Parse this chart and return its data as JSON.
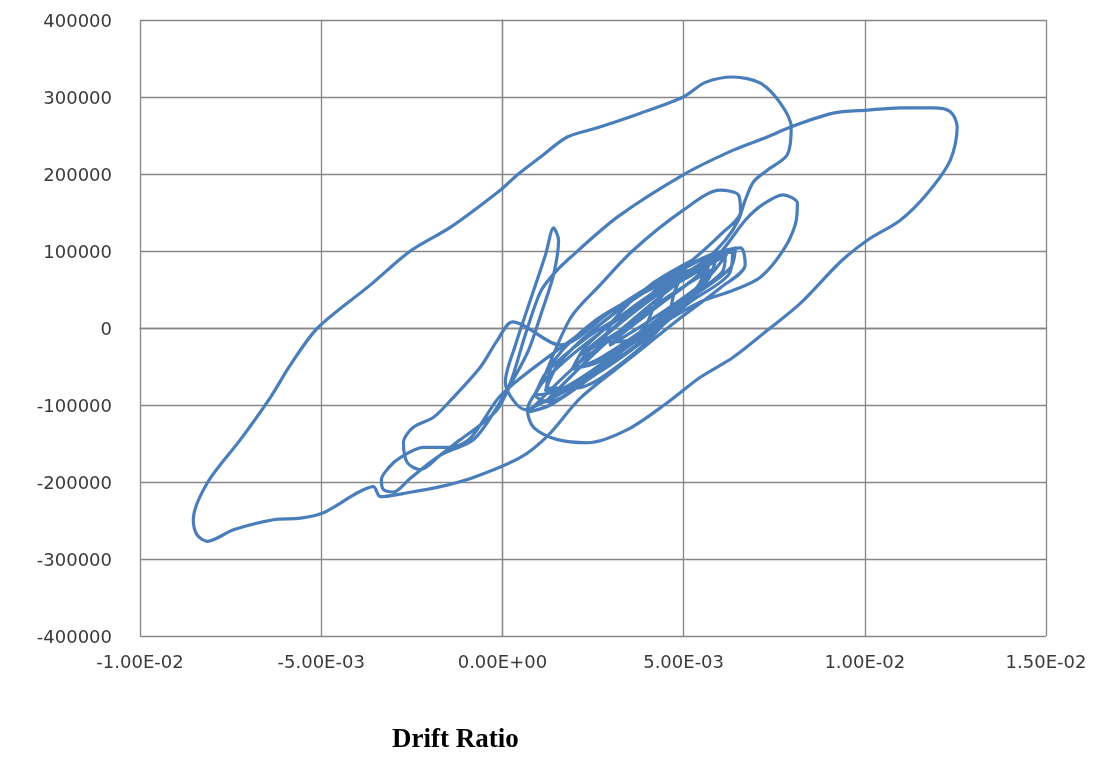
{
  "chart_data": {
    "type": "line",
    "xlabel": "Drift Ratio",
    "color": "#4a7ebb",
    "marker": "none",
    "line_style": "solid",
    "grid": true,
    "xlim": [
      -0.01,
      0.015
    ],
    "xticks": [
      {
        "value": -0.01,
        "label": "-1.00E-02"
      },
      {
        "value": -0.005,
        "label": "-5.00E-03"
      },
      {
        "value": 0,
        "label": "0.00E+00"
      },
      {
        "value": 0.005,
        "label": "5.00E-03"
      },
      {
        "value": 0.01,
        "label": "1.00E-02"
      },
      {
        "value": 0.015,
        "label": "1.50E-02"
      }
    ],
    "ylim": [
      -400000,
      400000
    ],
    "yticks": [
      -400000,
      -300000,
      -200000,
      -100000,
      0,
      100000,
      200000,
      300000,
      400000
    ],
    "x": [
      0.0027,
      0.00381,
      0.00519,
      0.00615,
      0.00607,
      0.00505,
      0.00367,
      0.00229,
      0.00127,
      0.00091,
      0.0016,
      0.00298,
      0.00436,
      0.00574,
      0.00643,
      0.00629,
      0.00519,
      0.00381,
      0.00243,
      0.00132,
      0.00063,
      8e-05,
      0.00036,
      0.00077,
      0.00119,
      0.00141,
      0.00155,
      0.00141,
      0.0011,
      0.00072,
      0.00022,
      -0.00014,
      -0.00061,
      -0.00116,
      -0.00171,
      -0.00226,
      -0.00262,
      -0.00273,
      -0.00246,
      -0.0019,
      -0.00143,
      -0.00061,
      -0.00014,
      0.00028,
      0.0016,
      0.00298,
      0.00436,
      0.0056,
      0.00635,
      0.00624,
      0.00519,
      0.00381,
      0.00243,
      0.00132,
      0.00072,
      0.00215,
      0.00381,
      0.00519,
      0.00607,
      0.0067,
      0.00717,
      0.00775,
      0.00814,
      0.00808,
      0.00775,
      0.00712,
      0.00637,
      0.00546,
      0.00436,
      0.00326,
      0.00215,
      0.00119,
      0.0027,
      0.00408,
      0.00546,
      0.00615,
      0.00651,
      0.0067,
      0.00693,
      0.00731,
      0.00786,
      0.00797,
      0.00767,
      0.00712,
      0.00637,
      0.0056,
      0.00499,
      0.00381,
      0.00262,
      0.00179,
      0.00105,
      0.00044,
      -6e-05,
      -0.00143,
      -0.00254,
      -0.00364,
      -0.0051,
      -0.00585,
      -0.0064,
      -0.00723,
      -0.00814,
      -0.00853,
      -0.00842,
      -0.00814,
      -0.00742,
      -0.00632,
      -0.00557,
      -0.00494,
      -0.004,
      -0.00356,
      -0.00337,
      -0.00262,
      -0.00171,
      -0.0008,
      0.0005,
      0.00127,
      0.00215,
      0.00353,
      0.00491,
      0.00601,
      0.0067,
      0.00657,
      0.00574,
      0.00436,
      0.00298,
      0.0016,
      0.0005,
      -0.00011,
      -0.00088,
      -0.00143,
      -0.00218,
      -0.00281,
      -0.00315,
      -0.00334,
      -0.00328,
      -0.00301,
      -0.00254,
      -0.00171,
      -0.0008,
      -0.00019,
      0.00022,
      0.00063,
      0.00105,
      0.00141,
      0.00179,
      0.00317,
      0.00499,
      0.00637,
      0.00731,
      0.00795,
      0.00913,
      0.01007,
      0.01098,
      0.01189,
      0.01236,
      0.01255,
      0.01236,
      0.01173,
      0.01098,
      0.01007,
      0.00933,
      0.00822,
      0.00731,
      0.00637,
      0.00546,
      0.00455,
      0.00345,
      0.00235,
      0.00152,
      0.00086,
      0.00069,
      0.00105,
      0.00188,
      0.0027,
      0.00361,
      0.00499,
      0.00601,
      0.00651,
      0.00657,
      0.00601,
      0.00519,
      0.00408,
      0.00298,
      0.00215,
      0.00326,
      0.00464,
      0.00574,
      0.00546,
      0.00408,
      0.00298,
      0.00326,
      0.0056,
      0.00519,
      0.00372,
      0.00207,
      0.00119,
      0.0016,
      0.00306,
      0.00472,
      0.00568,
      0.0053,
      0.00403,
      0.00265,
      0.00193,
      0.00232,
      0.00359,
      0.00497,
      0.00475,
      0.00452,
      0.00339,
      0.00201,
      0.00121,
      0.00143,
      0.00257,
      0.00395,
      0.0059,
      0.00566,
      0.00466,
      0.00348,
      0.00281,
      0.00306,
      0.00406,
      0.00524,
      0.00422,
      0.00392,
      0.00281,
      0.00157,
      0.00091,
      0.00121,
      0.00232,
      0.00356,
      0.00618,
      0.00568,
      0.00425,
      0.0027,
      0.00199,
      0.00248,
      0.00392,
      0.00546
    ],
    "values": [
      -16000,
      30000,
      73000,
      95000,
      73000,
      36000,
      -16000,
      -68000,
      -96000,
      -87000,
      -48000,
      4000,
      49000,
      91000,
      104000,
      78000,
      39000,
      -9000,
      -57000,
      -91000,
      -106000,
      -70000,
      -22000,
      36000,
      95000,
      130000,
      114000,
      69000,
      23000,
      -29000,
      -74000,
      -106000,
      -126000,
      -145000,
      -165000,
      -184000,
      -175000,
      -149000,
      -129000,
      -116000,
      -94000,
      -51000,
      -16000,
      8000,
      -22000,
      21000,
      60000,
      91000,
      99000,
      69000,
      34000,
      -18000,
      -65000,
      -100000,
      -109000,
      -44000,
      13000,
      60000,
      101000,
      140000,
      160000,
      173000,
      162000,
      134000,
      101000,
      66000,
      49000,
      34000,
      4000,
      -31000,
      -70000,
      -96000,
      -26000,
      30000,
      82000,
      114000,
      140000,
      166000,
      190000,
      205000,
      225000,
      261000,
      292000,
      318000,
      326000,
      319000,
      300000,
      279000,
      260000,
      248000,
      222000,
      200000,
      179000,
      131000,
      100000,
      56000,
      0,
      -48000,
      -90000,
      -145000,
      -201000,
      -249000,
      -269000,
      -277000,
      -262000,
      -249000,
      -247000,
      -240000,
      -214000,
      -206000,
      -219000,
      -214000,
      -206000,
      -194000,
      -168000,
      -139000,
      -91000,
      -39000,
      13000,
      52000,
      82000,
      104000,
      95000,
      62000,
      21000,
      -26000,
      -65000,
      -91000,
      -143000,
      -155000,
      -155000,
      -168000,
      -182000,
      -197000,
      -210000,
      -213000,
      -195000,
      -165000,
      -145000,
      -106000,
      -71000,
      -9000,
      47000,
      70000,
      88000,
      144000,
      199000,
      231000,
      248000,
      261000,
      279000,
      283000,
      286000,
      286000,
      281000,
      261000,
      218000,
      175000,
      140000,
      114000,
      86000,
      32000,
      -3000,
      -38000,
      -64000,
      -97000,
      -132000,
      -149000,
      -145000,
      -129000,
      -106000,
      -74000,
      13000,
      56000,
      101000,
      153000,
      179000,
      173000,
      151000,
      121000,
      86000,
      43000,
      -3000,
      -35000,
      -3000,
      43000,
      75000,
      56000,
      10000,
      -22000,
      -9000,
      75000,
      38000,
      -23000,
      -73000,
      -81000,
      -43000,
      18000,
      68000,
      79000,
      49000,
      -1000,
      -44000,
      -53000,
      -23000,
      27000,
      70000,
      47000,
      10000,
      -42000,
      -78000,
      -78000,
      -42000,
      10000,
      47000,
      91000,
      62000,
      18000,
      -16000,
      -18000,
      10000,
      55000,
      88000,
      30000,
      1000,
      -44000,
      -81000,
      -87000,
      -58000,
      -13000,
      23000,
      95000,
      66000,
      10000,
      -39000,
      -53000,
      -25000,
      31000,
      81000
    ]
  }
}
